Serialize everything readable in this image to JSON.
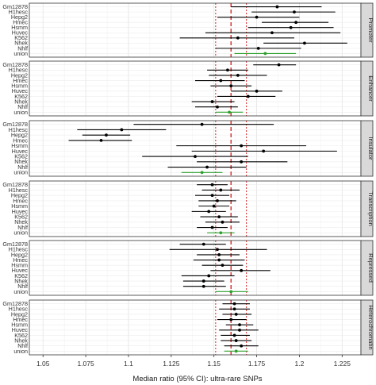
{
  "chart_data": {
    "type": "forest",
    "xlabel": "Median ratio (95% CI): ultra-rare SNPs",
    "xlim": [
      1.042,
      1.236
    ],
    "xticks": [
      1.05,
      1.075,
      1.1,
      1.125,
      1.15,
      1.175,
      1.2,
      1.225
    ],
    "xtick_labels": [
      "1.05",
      "1.075",
      "1.1",
      "1.125",
      "1.15",
      "1.175",
      "1.2",
      "1.225"
    ],
    "grid": true,
    "reference_lines": [
      {
        "x": 1.16,
        "style": "dashed",
        "color": "#d62728"
      },
      {
        "x": 1.151,
        "style": "dotted",
        "color": "#d62728"
      },
      {
        "x": 1.169,
        "style": "dotted",
        "color": "#d62728"
      }
    ],
    "row_labels": [
      "Gm12878",
      "H1hesc",
      "Hepg2",
      "Hmec",
      "Hsmm",
      "Huvec",
      "K562",
      "Nhek",
      "Nhlf",
      "union"
    ],
    "colors": {
      "cell": "#000000",
      "union": "#2ca02c",
      "strip_bg": "#d9d9d9",
      "panel_border": "#333333"
    },
    "panels": [
      {
        "name": "Promoter",
        "rows": [
          {
            "label": "Gm12878",
            "median": 1.187,
            "lo": 1.16,
            "hi": 1.213
          },
          {
            "label": "H1hesc",
            "median": 1.197,
            "lo": 1.172,
            "hi": 1.221
          },
          {
            "label": "Hepg2",
            "median": 1.175,
            "lo": 1.152,
            "hi": 1.2
          },
          {
            "label": "Hmec",
            "median": 1.198,
            "lo": 1.178,
            "hi": 1.217
          },
          {
            "label": "Hsmm",
            "median": 1.195,
            "lo": 1.17,
            "hi": 1.22
          },
          {
            "label": "Huvec",
            "median": 1.184,
            "lo": 1.145,
            "hi": 1.224
          },
          {
            "label": "K562",
            "median": 1.164,
            "lo": 1.13,
            "hi": 1.197
          },
          {
            "label": "Nhek",
            "median": 1.203,
            "lo": 1.179,
            "hi": 1.228
          },
          {
            "label": "Nhlf",
            "median": 1.176,
            "lo": 1.151,
            "hi": 1.201
          },
          {
            "label": "union",
            "median": 1.18,
            "lo": 1.162,
            "hi": 1.198
          }
        ]
      },
      {
        "name": "Enhancer",
        "rows": [
          {
            "label": "Gm12878",
            "median": 1.188,
            "lo": 1.173,
            "hi": 1.198
          },
          {
            "label": "H1hesc",
            "median": 1.158,
            "lo": 1.146,
            "hi": 1.17
          },
          {
            "label": "Hepg2",
            "median": 1.164,
            "lo": 1.147,
            "hi": 1.181
          },
          {
            "label": "Hmec",
            "median": 1.154,
            "lo": 1.139,
            "hi": 1.168
          },
          {
            "label": "Hsmm",
            "median": 1.16,
            "lo": 1.148,
            "hi": 1.172
          },
          {
            "label": "Huvec",
            "median": 1.175,
            "lo": 1.16,
            "hi": 1.19
          },
          {
            "label": "K562",
            "median": 1.17,
            "lo": 1.152,
            "hi": 1.186
          },
          {
            "label": "Nhek",
            "median": 1.149,
            "lo": 1.137,
            "hi": 1.162
          },
          {
            "label": "Nhlf",
            "median": 1.152,
            "lo": 1.139,
            "hi": 1.164
          },
          {
            "label": "union",
            "median": 1.159,
            "lo": 1.151,
            "hi": 1.167
          }
        ]
      },
      {
        "name": "Insulator",
        "rows": [
          {
            "label": "Gm12878",
            "median": 1.143,
            "lo": 1.103,
            "hi": 1.185
          },
          {
            "label": "H1hesc",
            "median": 1.096,
            "lo": 1.07,
            "hi": 1.122
          },
          {
            "label": "Hepg2",
            "median": 1.087,
            "lo": 1.073,
            "hi": 1.101
          },
          {
            "label": "Hmec",
            "median": 1.084,
            "lo": 1.065,
            "hi": 1.102
          },
          {
            "label": "Hsmm",
            "median": 1.166,
            "lo": 1.128,
            "hi": 1.204
          },
          {
            "label": "Huvec",
            "median": 1.179,
            "lo": 1.137,
            "hi": 1.222
          },
          {
            "label": "K562",
            "median": 1.139,
            "lo": 1.108,
            "hi": 1.17
          },
          {
            "label": "Nhek",
            "median": 1.166,
            "lo": 1.14,
            "hi": 1.193
          },
          {
            "label": "Nhlf",
            "median": 1.146,
            "lo": 1.123,
            "hi": 1.169
          },
          {
            "label": "union",
            "median": 1.143,
            "lo": 1.131,
            "hi": 1.155
          }
        ]
      },
      {
        "name": "Transcription",
        "rows": [
          {
            "label": "Gm12878",
            "median": 1.149,
            "lo": 1.14,
            "hi": 1.158
          },
          {
            "label": "H1hesc",
            "median": 1.154,
            "lo": 1.143,
            "hi": 1.165
          },
          {
            "label": "Hepg2",
            "median": 1.149,
            "lo": 1.139,
            "hi": 1.159
          },
          {
            "label": "Hmec",
            "median": 1.152,
            "lo": 1.141,
            "hi": 1.163
          },
          {
            "label": "Hsmm",
            "median": 1.15,
            "lo": 1.141,
            "hi": 1.159
          },
          {
            "label": "Huvec",
            "median": 1.147,
            "lo": 1.137,
            "hi": 1.157
          },
          {
            "label": "K562",
            "median": 1.153,
            "lo": 1.142,
            "hi": 1.164
          },
          {
            "label": "Nhek",
            "median": 1.155,
            "lo": 1.145,
            "hi": 1.165
          },
          {
            "label": "Nhlf",
            "median": 1.149,
            "lo": 1.14,
            "hi": 1.158
          },
          {
            "label": "union",
            "median": 1.154,
            "lo": 1.146,
            "hi": 1.162
          }
        ]
      },
      {
        "name": "Repressed",
        "rows": [
          {
            "label": "Gm12878",
            "median": 1.144,
            "lo": 1.13,
            "hi": 1.157
          },
          {
            "label": "H1hesc",
            "median": 1.152,
            "lo": 1.124,
            "hi": 1.181
          },
          {
            "label": "Hepg2",
            "median": 1.153,
            "lo": 1.14,
            "hi": 1.165
          },
          {
            "label": "Hmec",
            "median": 1.153,
            "lo": 1.138,
            "hi": 1.168
          },
          {
            "label": "Hsmm",
            "median": 1.155,
            "lo": 1.143,
            "hi": 1.167
          },
          {
            "label": "Huvec",
            "median": 1.166,
            "lo": 1.148,
            "hi": 1.183
          },
          {
            "label": "K562",
            "median": 1.147,
            "lo": 1.131,
            "hi": 1.162
          },
          {
            "label": "Nhek",
            "median": 1.144,
            "lo": 1.132,
            "hi": 1.156
          },
          {
            "label": "Nhlf",
            "median": 1.144,
            "lo": 1.132,
            "hi": 1.157
          },
          {
            "label": "union",
            "median": 1.16,
            "lo": 1.151,
            "hi": 1.17
          }
        ]
      },
      {
        "name": "Heterochromatin",
        "rows": [
          {
            "label": "Gm12878",
            "median": 1.162,
            "lo": 1.155,
            "hi": 1.171
          },
          {
            "label": "H1hesc",
            "median": 1.162,
            "lo": 1.153,
            "hi": 1.171
          },
          {
            "label": "Hepg2",
            "median": 1.163,
            "lo": 1.155,
            "hi": 1.172
          },
          {
            "label": "Hmec",
            "median": 1.16,
            "lo": 1.152,
            "hi": 1.169
          },
          {
            "label": "Hsmm",
            "median": 1.165,
            "lo": 1.157,
            "hi": 1.173
          },
          {
            "label": "Huvec",
            "median": 1.165,
            "lo": 1.153,
            "hi": 1.176
          },
          {
            "label": "K562",
            "median": 1.162,
            "lo": 1.154,
            "hi": 1.171
          },
          {
            "label": "Nhek",
            "median": 1.163,
            "lo": 1.154,
            "hi": 1.172
          },
          {
            "label": "Nhlf",
            "median": 1.166,
            "lo": 1.156,
            "hi": 1.176
          },
          {
            "label": "union",
            "median": 1.163,
            "lo": 1.156,
            "hi": 1.17
          }
        ]
      }
    ]
  }
}
